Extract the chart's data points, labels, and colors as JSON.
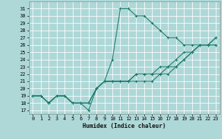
{
  "xlabel": "Humidex (Indice chaleur)",
  "ylabel": "",
  "bg_color": "#aed8d8",
  "grid_color": "#ffffff",
  "line_color": "#1a7a6a",
  "xlim": [
    -0.5,
    23.5
  ],
  "ylim": [
    16.5,
    32
  ],
  "yticks": [
    17,
    18,
    19,
    20,
    21,
    22,
    23,
    24,
    25,
    26,
    27,
    28,
    29,
    30,
    31
  ],
  "xticks": [
    0,
    1,
    2,
    3,
    4,
    5,
    6,
    7,
    8,
    9,
    10,
    11,
    12,
    13,
    14,
    15,
    16,
    17,
    18,
    19,
    20,
    21,
    22,
    23
  ],
  "curves": [
    {
      "x": [
        0,
        1,
        2,
        3,
        4,
        5,
        6,
        7,
        8,
        9,
        10,
        11,
        12,
        13,
        14,
        15,
        16,
        17,
        18,
        19,
        20,
        21,
        22,
        23
      ],
      "y": [
        19,
        19,
        18,
        19,
        19,
        18,
        18,
        17,
        20,
        21,
        24,
        31,
        31,
        30,
        30,
        29,
        28,
        27,
        27,
        26,
        26,
        26,
        26,
        26
      ]
    },
    {
      "x": [
        0,
        1,
        2,
        3,
        4,
        5,
        6,
        7,
        8,
        9,
        10,
        11,
        12,
        13,
        14,
        15,
        16,
        17,
        18,
        19,
        20,
        21,
        22,
        23
      ],
      "y": [
        19,
        19,
        18,
        19,
        19,
        18,
        18,
        18,
        20,
        21,
        21,
        21,
        21,
        21,
        21,
        21,
        22,
        22,
        23,
        24,
        25,
        26,
        26,
        26
      ]
    },
    {
      "x": [
        0,
        1,
        2,
        3,
        4,
        5,
        6,
        7,
        8,
        9,
        10,
        11,
        12,
        13,
        14,
        15,
        16,
        17,
        18,
        19,
        20,
        21,
        22,
        23
      ],
      "y": [
        19,
        19,
        18,
        19,
        19,
        18,
        18,
        18,
        20,
        21,
        21,
        21,
        21,
        22,
        22,
        22,
        22,
        23,
        23,
        24,
        25,
        26,
        26,
        27
      ]
    },
    {
      "x": [
        0,
        1,
        2,
        3,
        4,
        5,
        6,
        7,
        8,
        9,
        10,
        11,
        12,
        13,
        14,
        15,
        16,
        17,
        18,
        19,
        20,
        21,
        22,
        23
      ],
      "y": [
        19,
        19,
        18,
        19,
        19,
        18,
        18,
        18,
        20,
        21,
        21,
        21,
        21,
        22,
        22,
        22,
        23,
        23,
        24,
        25,
        25,
        26,
        26,
        27
      ]
    }
  ]
}
